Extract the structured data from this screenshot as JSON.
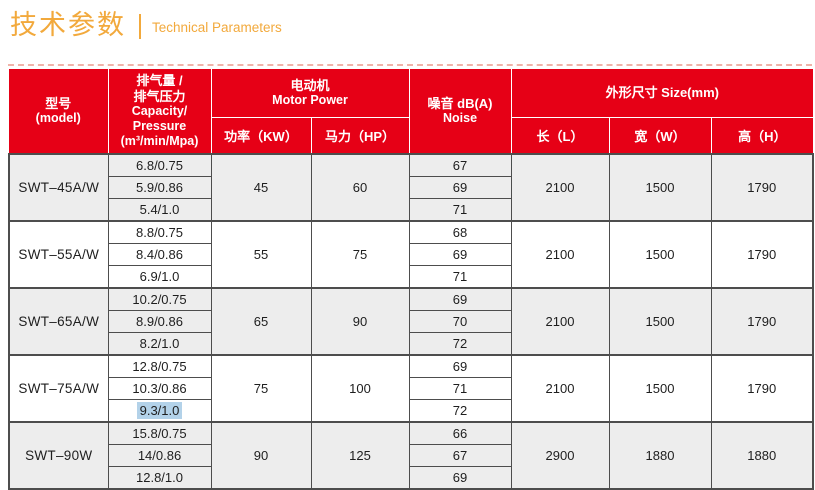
{
  "title": {
    "zh": "技术参数",
    "en": "Technical Parameters"
  },
  "colors": {
    "accent_orange": "#f2a93c",
    "header_red": "#e60016",
    "border_dark": "#4d4d4d",
    "shaded_row": "#ededed",
    "selection_blue": "#b3d2e9"
  },
  "table": {
    "header": {
      "model_zh": "型号",
      "model_en": "(model)",
      "capacity_lines": [
        "排气量 /",
        "排气压力",
        "Capacity/",
        "Pressure",
        "(m³/min/Mpa)"
      ],
      "motor_zh": "电动机",
      "motor_en": "Motor Power",
      "power_kw": "功率（KW）",
      "horsepower": "马力（HP）",
      "noise_zh": "噪音 dB(A)",
      "noise_en": "Noise",
      "size": "外形尺寸 Size(mm)",
      "length": "长（L）",
      "width": "宽（W）",
      "height": "高（H）"
    },
    "selection": {
      "group_index": 3,
      "row_index": 2
    },
    "groups": [
      {
        "model": "SWT–45A/W",
        "shaded": true,
        "capacity": [
          "6.8/0.75",
          "5.9/0.86",
          "5.4/1.0"
        ],
        "power_kw": "45",
        "horsepower": "60",
        "noise": [
          "67",
          "69",
          "71"
        ],
        "length": "2100",
        "width": "1500",
        "height": "1790"
      },
      {
        "model": "SWT–55A/W",
        "shaded": false,
        "capacity": [
          "8.8/0.75",
          "8.4/0.86",
          "6.9/1.0"
        ],
        "power_kw": "55",
        "horsepower": "75",
        "noise": [
          "68",
          "69",
          "71"
        ],
        "length": "2100",
        "width": "1500",
        "height": "1790"
      },
      {
        "model": "SWT–65A/W",
        "shaded": true,
        "capacity": [
          "10.2/0.75",
          "8.9/0.86",
          "8.2/1.0"
        ],
        "power_kw": "65",
        "horsepower": "90",
        "noise": [
          "69",
          "70",
          "72"
        ],
        "length": "2100",
        "width": "1500",
        "height": "1790"
      },
      {
        "model": "SWT–75A/W",
        "shaded": false,
        "capacity": [
          "12.8/0.75",
          "10.3/0.86",
          "9.3/1.0"
        ],
        "power_kw": "75",
        "horsepower": "100",
        "noise": [
          "69",
          "71",
          "72"
        ],
        "length": "2100",
        "width": "1500",
        "height": "1790"
      },
      {
        "model": "SWT–90W",
        "shaded": true,
        "capacity": [
          "15.8/0.75",
          "14/0.86",
          "12.8/1.0"
        ],
        "power_kw": "90",
        "horsepower": "125",
        "noise": [
          "66",
          "67",
          "69"
        ],
        "length": "2900",
        "width": "1880",
        "height": "1880"
      }
    ]
  }
}
